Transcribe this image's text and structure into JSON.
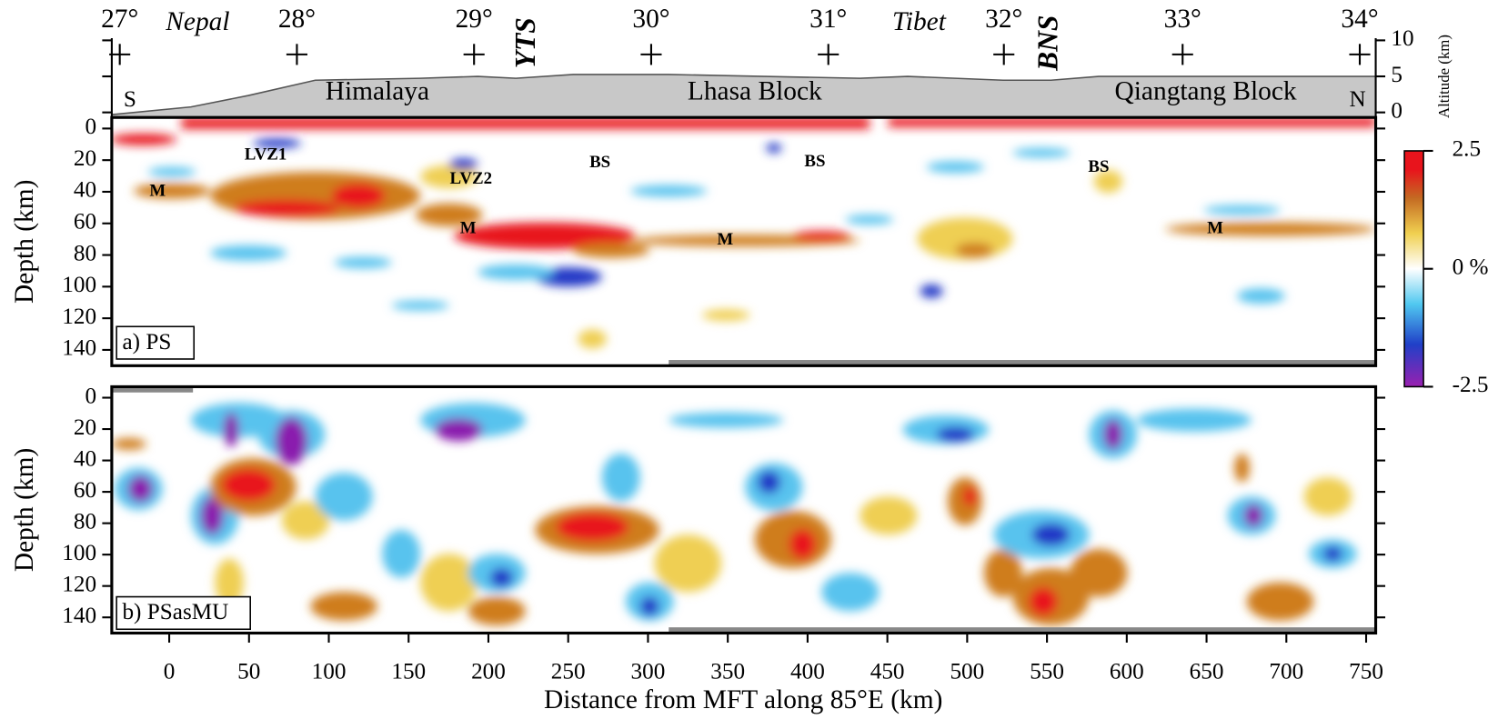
{
  "chart_data": [
    {
      "type": "profile",
      "ylabel": "Altitude (km)",
      "xlim": [
        -36,
        756
      ],
      "ylim": [
        -0.7,
        10.3
      ],
      "yticks": [
        0,
        5,
        10
      ],
      "top_ticks": [
        {
          "value": -31,
          "label": "27°"
        },
        {
          "value": 80,
          "label": "28°"
        },
        {
          "value": 191,
          "label": "29°"
        },
        {
          "value": 302,
          "label": "30°"
        },
        {
          "value": 413,
          "label": "31°"
        },
        {
          "value": 523,
          "label": "32°"
        },
        {
          "value": 635,
          "label": "33°"
        },
        {
          "value": 746,
          "label": "34°"
        }
      ],
      "annotations": [
        "Nepal",
        "Tibet",
        "YTS",
        "BNS",
        "Himalaya",
        "Lhasa Block",
        "Qiangtang Block",
        "S",
        "N"
      ]
    },
    {
      "type": "heatmap",
      "panel_label": "a) PS",
      "ylabel": "Depth (km)",
      "xlim": [
        -36,
        756
      ],
      "ylim": [
        -7,
        150
      ],
      "yticks": [
        0,
        20,
        40,
        60,
        80,
        100,
        120,
        140
      ],
      "annotations": [
        "LVZ1",
        "LVZ2",
        "M",
        "M",
        "M",
        "M",
        "BS",
        "BS",
        "BS"
      ],
      "colorbar": {
        "lim": [
          -2.5,
          2.5
        ],
        "ticks": [
          2.5,
          {
            "value": 0,
            "label": "0 %"
          },
          -2.5
        ]
      }
    },
    {
      "type": "heatmap",
      "panel_label": "b) PSasMU",
      "ylabel": "Depth (km)",
      "xlabel": "Distance from MFT along 85°E (km)",
      "xlim": [
        -36,
        756
      ],
      "ylim": [
        -7,
        150
      ],
      "yticks": [
        0,
        20,
        40,
        60,
        80,
        100,
        120,
        140
      ],
      "xticks": [
        0,
        50,
        100,
        150,
        200,
        250,
        300,
        350,
        400,
        450,
        500,
        550,
        600,
        650,
        700,
        750
      ]
    }
  ]
}
